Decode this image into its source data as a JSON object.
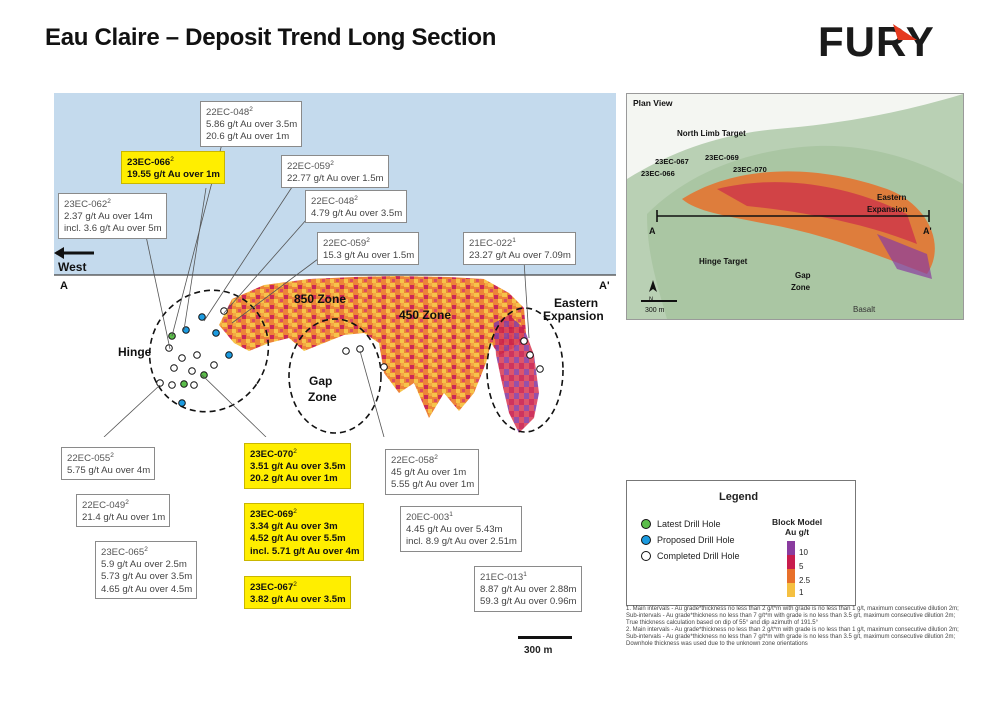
{
  "title": "Eau Claire – Deposit Trend Long Section",
  "brand": {
    "logo_text": "FURY",
    "accent": "#e53a1f",
    "dark": "#1a1a1a"
  },
  "section": {
    "west_label": "West",
    "a_left": "A",
    "a_right": "A'",
    "zones": [
      "850 Zone",
      "450 Zone",
      "Gap",
      "Zone",
      "Eastern",
      "Expansion",
      "Hinge"
    ],
    "colors": {
      "sky": "#c4daed",
      "low": "#f5c041",
      "mid": "#e8702a",
      "high": "#c81d4d",
      "vhigh": "#8a3c9f"
    }
  },
  "callouts": [
    {
      "id": "22EC-048",
      "sup": "2",
      "lines": [
        "5.86 g/t Au over 3.5m",
        "20.6 g/t Au over 1m"
      ],
      "hl": false
    },
    {
      "id": "23EC-066",
      "sup": "2",
      "lines": [
        "19.55 g/t Au over 1m"
      ],
      "hl": true
    },
    {
      "id": "22EC-059",
      "sup": "2",
      "lines": [
        "22.77 g/t Au over 1.5m"
      ],
      "hl": false
    },
    {
      "id": "23EC-062",
      "sup": "2",
      "lines": [
        "2.37 g/t Au over 14m",
        "incl. 3.6 g/t Au over 5m"
      ],
      "hl": false
    },
    {
      "id": "22EC-048",
      "sup": "2",
      "lines": [
        "4.79 g/t Au over 3.5m"
      ],
      "hl": false
    },
    {
      "id": "22EC-059",
      "sup": "2",
      "lines": [
        "15.3 g/t Au over 1.5m"
      ],
      "hl": false
    },
    {
      "id": "21EC-022",
      "sup": "1",
      "lines": [
        "23.27 g/t Au over 7.09m"
      ],
      "hl": false
    },
    {
      "id": "22EC-055",
      "sup": "2",
      "lines": [
        "5.75 g/t Au over 4m"
      ],
      "hl": false
    },
    {
      "id": "23EC-070",
      "sup": "2",
      "lines": [
        "3.51 g/t Au over 3.5m",
        "20.2 g/t Au over 1m"
      ],
      "hl": true
    },
    {
      "id": "22EC-058",
      "sup": "2",
      "lines": [
        "45 g/t Au over 1m",
        "5.55 g/t Au over 1m"
      ],
      "hl": false
    },
    {
      "id": "22EC-049",
      "sup": "2",
      "lines": [
        "21.4 g/t Au over 1m"
      ],
      "hl": false
    },
    {
      "id": "23EC-069",
      "sup": "2",
      "lines": [
        "3.34 g/t Au over 3m",
        "4.52 g/t Au over 5.5m",
        "incl. 5.71 g/t Au over 4m"
      ],
      "hl": true
    },
    {
      "id": "20EC-003",
      "sup": "1",
      "lines": [
        "4.45 g/t Au over 5.43m",
        "incl. 8.9 g/t Au over 2.51m"
      ],
      "hl": false
    },
    {
      "id": "23EC-065",
      "sup": "2",
      "lines": [
        "5.9 g/t Au over 2.5m",
        "5.73 g/t Au over 3.5m",
        "4.65 g/t Au over 4.5m"
      ],
      "hl": false
    },
    {
      "id": "23EC-067",
      "sup": "2",
      "lines": [
        "3.82 g/t Au over 3.5m"
      ],
      "hl": true
    },
    {
      "id": "21EC-013",
      "sup": "1",
      "lines": [
        "8.87 g/t Au over 2.88m",
        "59.3 g/t Au over 0.96m"
      ],
      "hl": false
    }
  ],
  "plan_view": {
    "title": "Plan View",
    "labels": [
      "North Limb Target",
      "23EC-067",
      "23EC-069",
      "23EC-066",
      "23EC-070",
      "Eastern",
      "Expansion",
      "Hinge Target",
      "Gap",
      "Zone",
      "Basalt"
    ],
    "a_left": "A",
    "a_right": "A'",
    "north": "N",
    "scale": "300 m"
  },
  "legend": {
    "title": "Legend",
    "items": [
      {
        "label": "Latest Drill Hole",
        "color": "#5bbd4a"
      },
      {
        "label": "Proposed Drill Hole",
        "color": "#1c9be0"
      },
      {
        "label": "Completed Drill Hole",
        "color": "#ffffff"
      }
    ],
    "block_title_1": "Block Model",
    "block_title_2": "Au g/t",
    "scale_values": [
      "10",
      "5",
      "2.5",
      "1"
    ],
    "scale_colors": [
      "#8a3c9f",
      "#c81d4d",
      "#e8702a",
      "#f5c041"
    ]
  },
  "footnotes": [
    "1. Main intervals - Au grade*thickness no less than 2 g/t*m with grade is no less than 1 g/t, maximum consecutive dilution 2m; Sub-intervals - Au grade*thickness no less than 7 g/t*m with grade is no less than 3.5 g/t, maximum consecutive dilution 2m; True thickness calculation based on dip of 55° and dip azimuth of 191.5°",
    "2. Main intervals - Au grade*thickness no less than 2 g/t*m with grade is no less than 1 g/t, maximum consecutive dilution 2m; Sub-intervals - Au grade*thickness no less than 7 g/t*m with grade is no less than 3.5 g/t, maximum consecutive dilution 2m; Downhole thickness was used due to the unknown zone orientations"
  ],
  "scale_bar": "300 m"
}
